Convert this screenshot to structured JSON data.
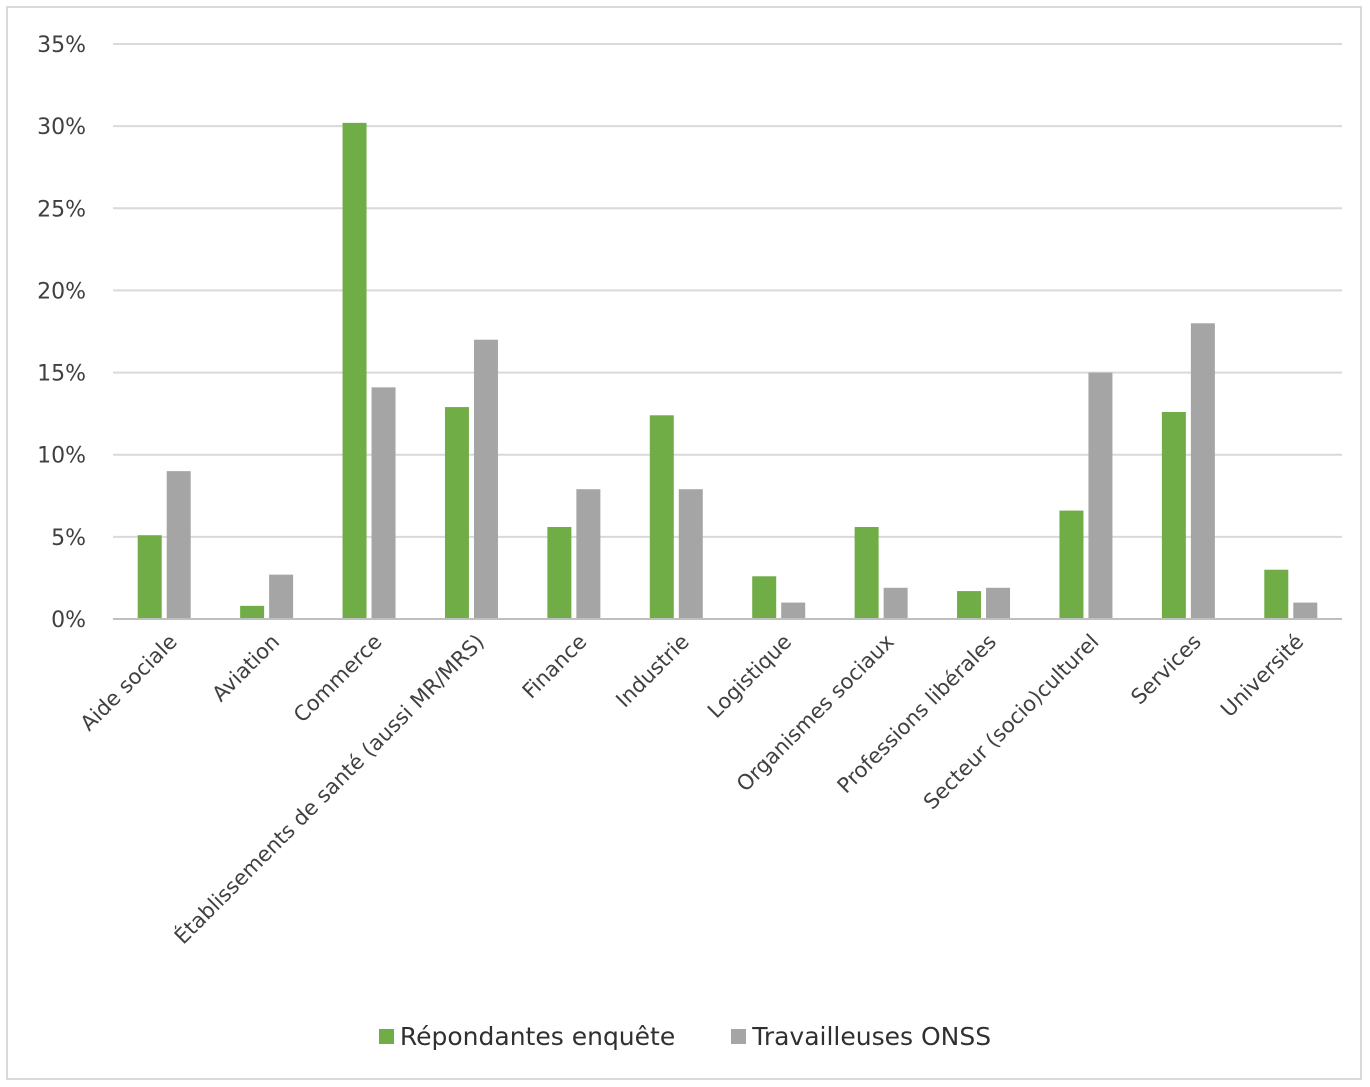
{
  "chart_data": {
    "type": "bar",
    "title": "",
    "xlabel": "",
    "ylabel": "",
    "ylim": [
      0,
      35
    ],
    "y_ticks": [
      "0%",
      "5%",
      "10%",
      "15%",
      "20%",
      "25%",
      "30%",
      "35%"
    ],
    "y_tick_values": [
      0,
      5,
      10,
      15,
      20,
      25,
      30,
      35
    ],
    "grid": true,
    "legend_position": "bottom",
    "categories": [
      "Aide sociale",
      "Aviation",
      "Commerce",
      "Établissements de santé (aussi MR/MRS)",
      "Finance",
      "Industrie",
      "Logistique",
      "Organismes sociaux",
      "Professions libérales",
      "Secteur (socio)culturel",
      "Services",
      "Université"
    ],
    "series": [
      {
        "name": "Répondantes enquête",
        "color": "#70ad47",
        "values": [
          5.1,
          0.8,
          30.2,
          12.9,
          5.6,
          12.4,
          2.6,
          5.6,
          1.7,
          6.6,
          12.6,
          3.0
        ]
      },
      {
        "name": "Travailleuses ONSS",
        "color": "#a5a5a5",
        "values": [
          9.0,
          2.7,
          14.1,
          17.0,
          7.9,
          7.9,
          1.0,
          1.9,
          1.9,
          15.0,
          18.0,
          1.0
        ]
      }
    ]
  }
}
